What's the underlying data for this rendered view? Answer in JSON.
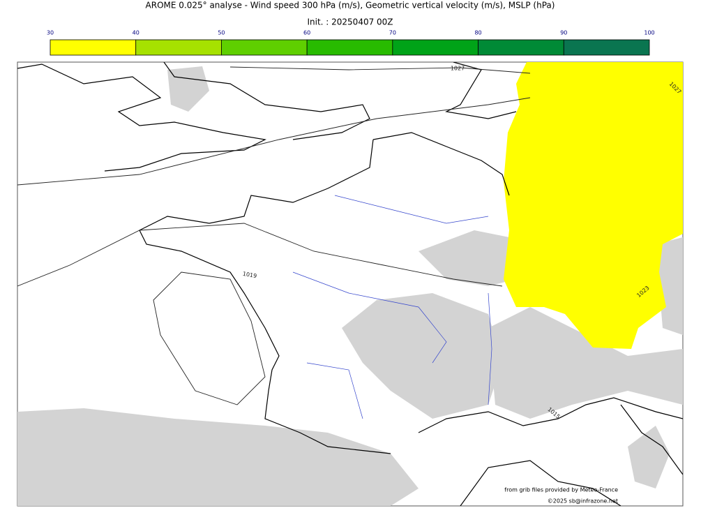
{
  "header": {
    "title": "AROME 0.025° analyse - Wind speed 300 hPa (m/s), Geometric vertical velocity (m/s), MSLP (hPa)",
    "subtitle": "Init. : 20250407 00Z"
  },
  "colorbar": {
    "ticks": [
      30,
      40,
      50,
      60,
      70,
      80,
      90,
      100
    ],
    "colors": [
      "#ffff00",
      "#a6e100",
      "#5fcf00",
      "#28bb00",
      "#00a318",
      "#008a36",
      "#0a7550"
    ]
  },
  "map": {
    "isobar_labels": [
      "1027",
      "1027",
      "1019",
      "1015",
      "1023"
    ],
    "credits": [
      "from grib files provided by Meteo-France",
      "©2025 sb@infrazone.net"
    ]
  }
}
